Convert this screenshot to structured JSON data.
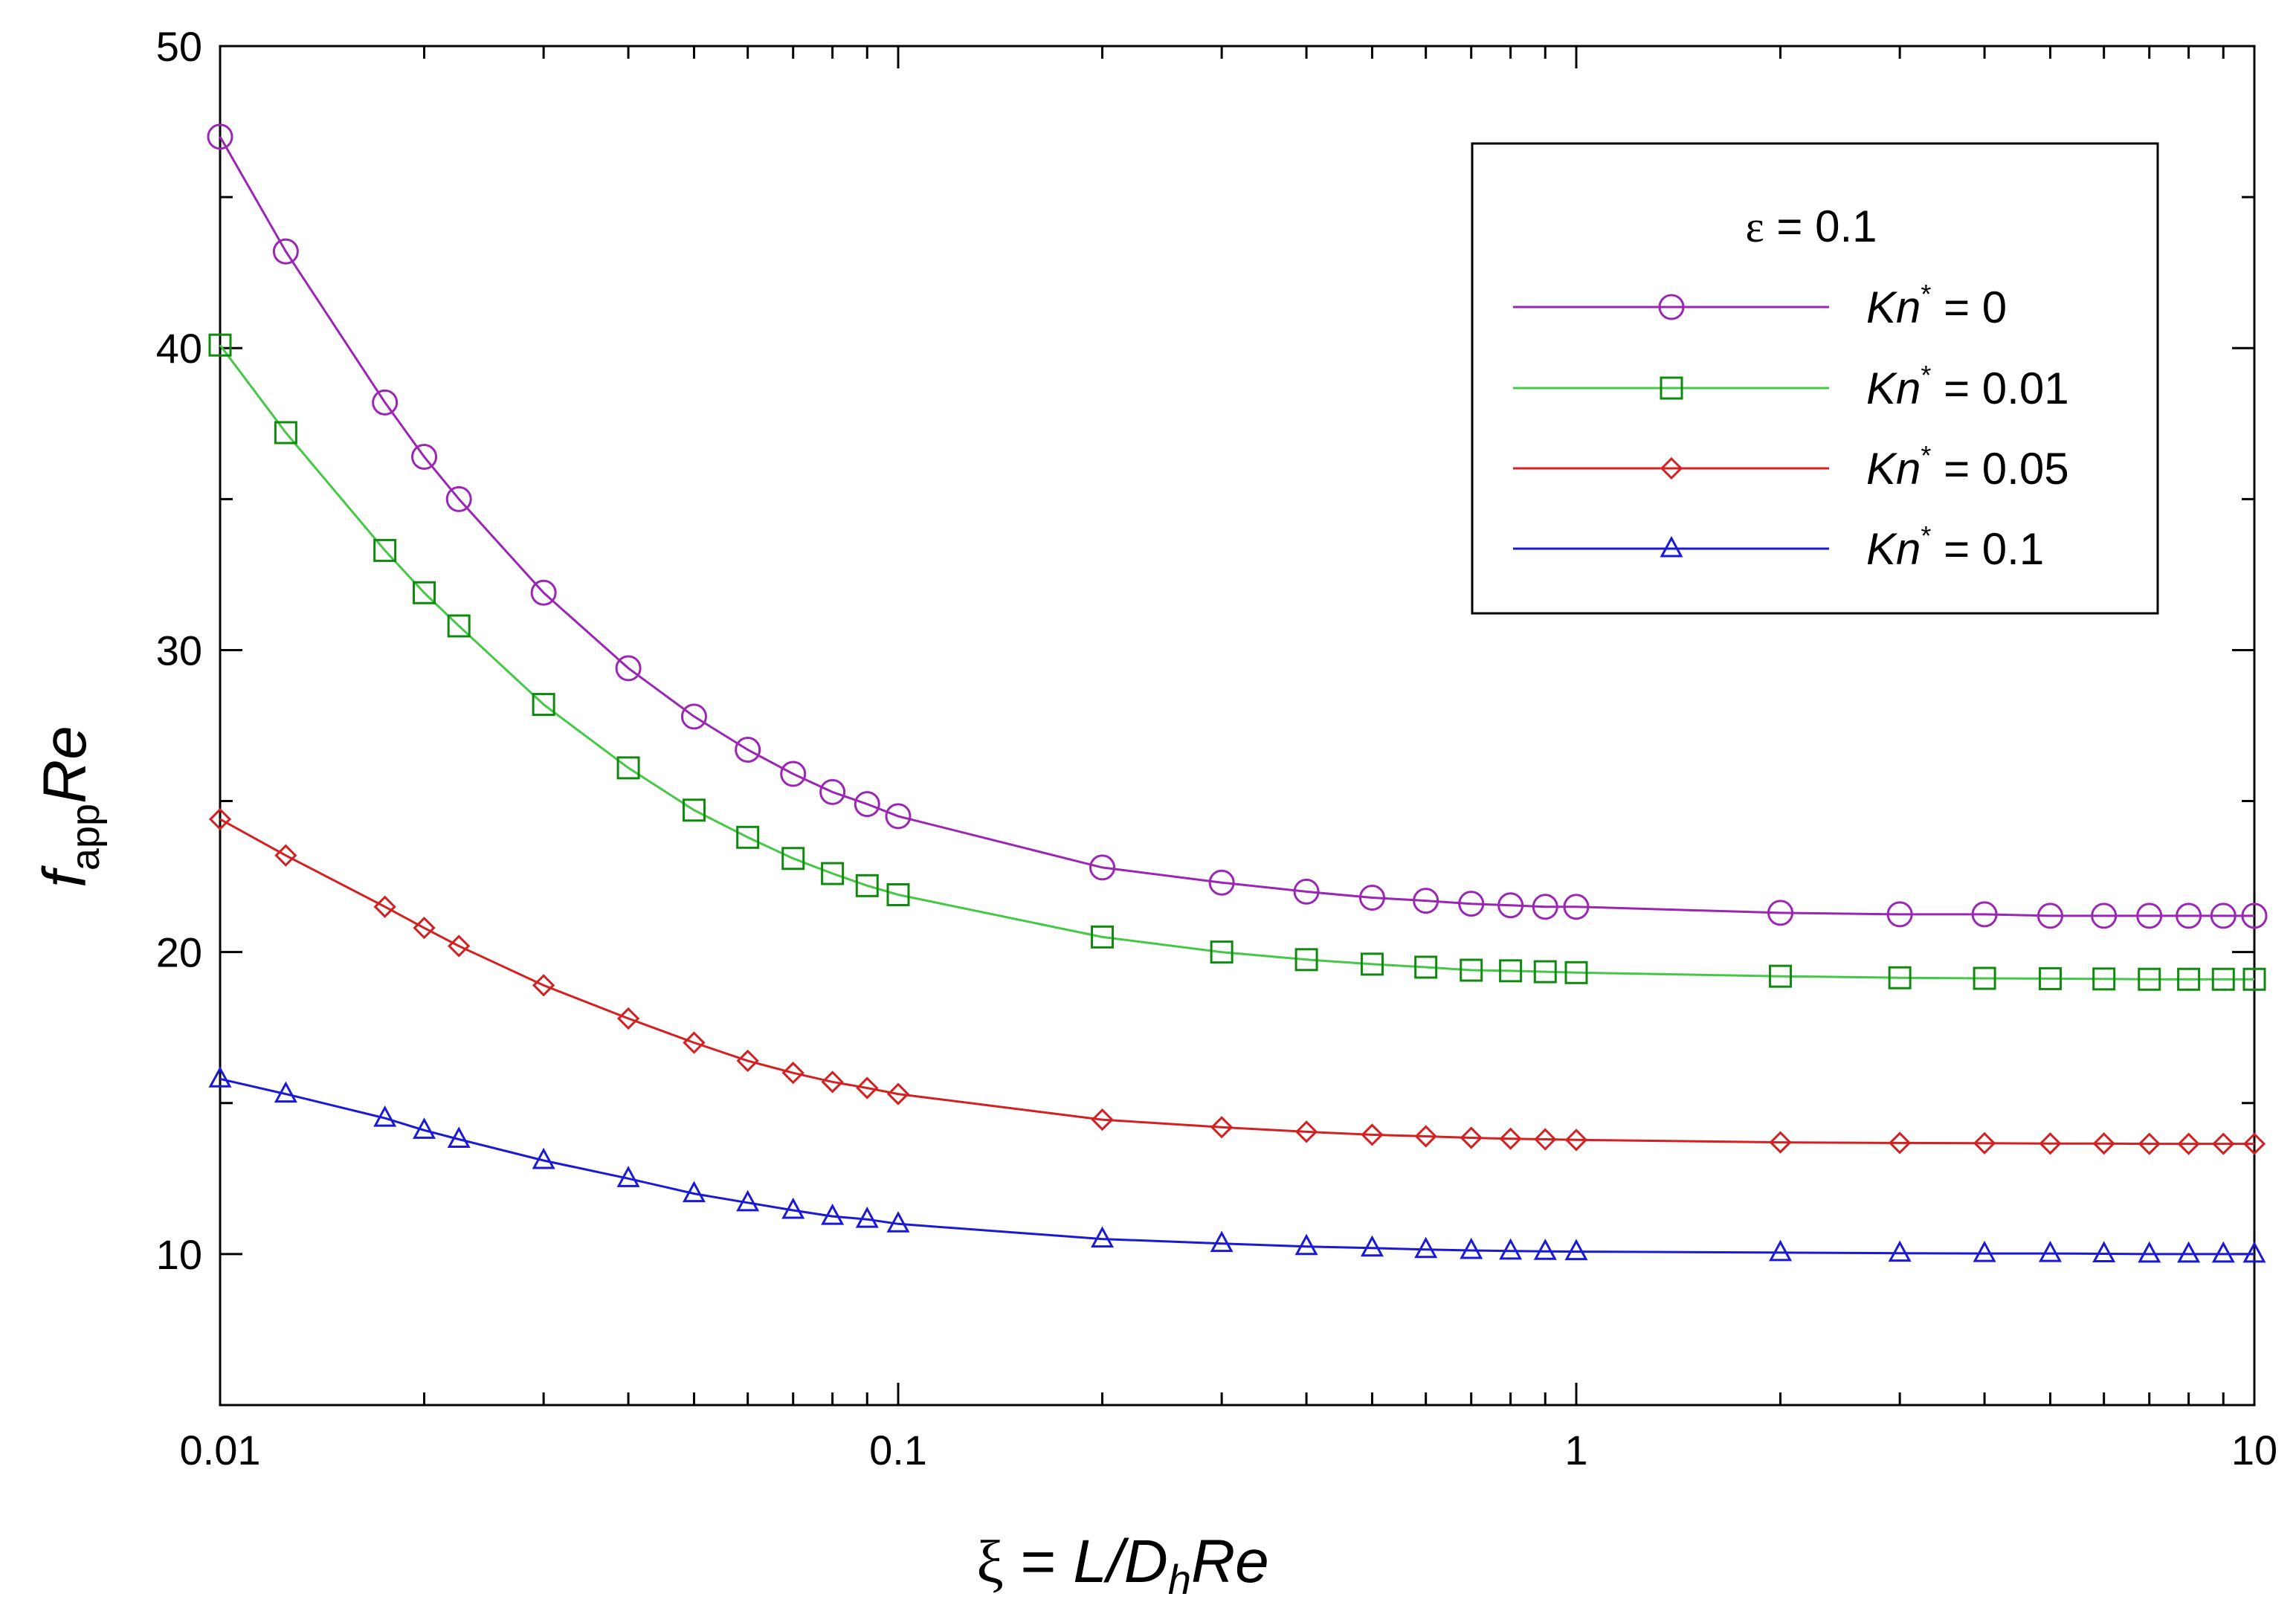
{
  "chart_data": {
    "type": "line",
    "x_scale": "log",
    "xlim": [
      0.01,
      10
    ],
    "ylim": [
      5,
      50
    ],
    "xlabel": {
      "symbol": "ξ",
      "eq": " = ",
      "main": "L/D",
      "sub": "h",
      "tail": "Re"
    },
    "ylabel": {
      "main": "f",
      "sub": "app",
      "tail": "Re"
    },
    "x_ticks": [
      {
        "value": 0.01,
        "label": "0.01"
      },
      {
        "value": 0.1,
        "label": "0.1"
      },
      {
        "value": 1,
        "label": "1"
      },
      {
        "value": 10,
        "label": "10"
      }
    ],
    "y_ticks": [
      {
        "value": 10,
        "label": "10"
      },
      {
        "value": 20,
        "label": "20"
      },
      {
        "value": 30,
        "label": "30"
      },
      {
        "value": 40,
        "label": "40"
      },
      {
        "value": 50,
        "label": "50"
      }
    ],
    "legend": {
      "title": {
        "symbol": "ε",
        "text": " = 0.1"
      },
      "position": "top-right"
    },
    "x": [
      0.01,
      0.0125,
      0.0175,
      0.02,
      0.0225,
      0.03,
      0.04,
      0.05,
      0.06,
      0.07,
      0.08,
      0.09,
      0.1,
      0.2,
      0.3,
      0.4,
      0.5,
      0.6,
      0.7,
      0.8,
      0.9,
      1,
      2,
      3,
      4,
      5,
      6,
      7,
      8,
      9,
      10
    ],
    "series": [
      {
        "name": "Kn* = 0",
        "label_main": "Kn",
        "label_sup": "*",
        "label_rest": " = 0",
        "color": "#9b26b6",
        "marker": "circle",
        "values": [
          47.0,
          43.2,
          38.2,
          36.4,
          35.0,
          31.9,
          29.4,
          27.8,
          26.7,
          25.9,
          25.3,
          24.9,
          24.5,
          22.8,
          22.3,
          22.0,
          21.8,
          21.7,
          21.6,
          21.55,
          21.5,
          21.5,
          21.3,
          21.25,
          21.25,
          21.2,
          21.2,
          21.2,
          21.2,
          21.2,
          21.2
        ]
      },
      {
        "name": "Kn* = 0.01",
        "label_main": "Kn",
        "label_sup": "*",
        "label_rest": " = 0.01",
        "color": "#0f8a0f",
        "line_color": "#45c845",
        "marker": "square",
        "values": [
          40.1,
          37.2,
          33.3,
          31.9,
          30.8,
          28.2,
          26.1,
          24.7,
          23.8,
          23.1,
          22.6,
          22.2,
          21.9,
          20.5,
          20.0,
          19.75,
          19.6,
          19.5,
          19.4,
          19.38,
          19.35,
          19.32,
          19.2,
          19.15,
          19.13,
          19.12,
          19.11,
          19.1,
          19.1,
          19.1,
          19.1
        ]
      },
      {
        "name": "Kn* = 0.05",
        "label_main": "Kn",
        "label_sup": "*",
        "label_rest": " = 0.05",
        "color": "#d42020",
        "marker": "diamond",
        "values": [
          24.4,
          23.2,
          21.5,
          20.8,
          20.2,
          18.9,
          17.8,
          17.0,
          16.4,
          16.0,
          15.7,
          15.5,
          15.3,
          14.45,
          14.2,
          14.05,
          13.95,
          13.9,
          13.85,
          13.82,
          13.8,
          13.78,
          13.7,
          13.68,
          13.67,
          13.66,
          13.66,
          13.65,
          13.65,
          13.65,
          13.65
        ]
      },
      {
        "name": "Kn* = 0.1",
        "label_main": "Kn",
        "label_sup": "*",
        "label_rest": " = 0.1",
        "color": "#1a1ad6",
        "marker": "triangle",
        "values": [
          15.8,
          15.3,
          14.5,
          14.1,
          13.8,
          13.1,
          12.5,
          12.0,
          11.7,
          11.45,
          11.25,
          11.15,
          11.0,
          10.5,
          10.35,
          10.25,
          10.2,
          10.15,
          10.12,
          10.1,
          10.09,
          10.08,
          10.05,
          10.03,
          10.02,
          10.02,
          10.01,
          10.0,
          10.0,
          10.0,
          10.0
        ]
      }
    ]
  }
}
